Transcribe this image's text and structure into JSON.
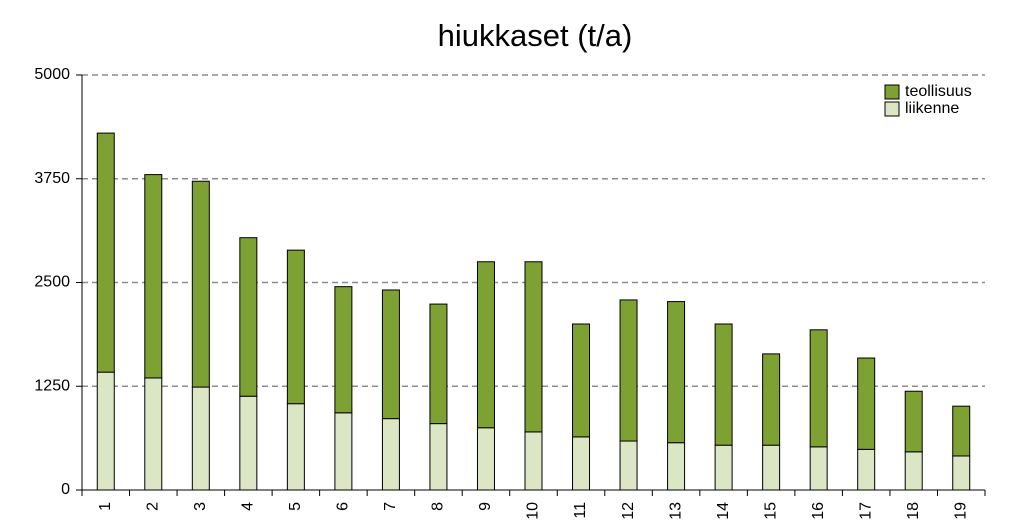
{
  "chart_data": {
    "type": "stacked_bar",
    "title": "hiukkaset (t/a)",
    "categories": [
      "1",
      "2",
      "3",
      "4",
      "5",
      "6",
      "7",
      "8",
      "9",
      "10",
      "11",
      "12",
      "13",
      "14",
      "15",
      "16",
      "17",
      "18",
      "19"
    ],
    "series": [
      {
        "name": "teollisuus",
        "color": "#7da133",
        "values": [
          2880,
          2450,
          2480,
          1910,
          1850,
          1520,
          1550,
          1440,
          2000,
          2050,
          1360,
          1700,
          1700,
          1460,
          1100,
          1410,
          1100,
          730,
          600
        ]
      },
      {
        "name": "liikenne",
        "color": "#dbe6c4",
        "values": [
          1420,
          1350,
          1240,
          1130,
          1040,
          930,
          860,
          800,
          750,
          700,
          640,
          590,
          570,
          540,
          540,
          520,
          490,
          460,
          410
        ]
      }
    ],
    "ylim": [
      0,
      5000
    ],
    "yticks": [
      0,
      1250,
      2500,
      3750,
      5000
    ],
    "grid": true,
    "legend": "top-right"
  }
}
